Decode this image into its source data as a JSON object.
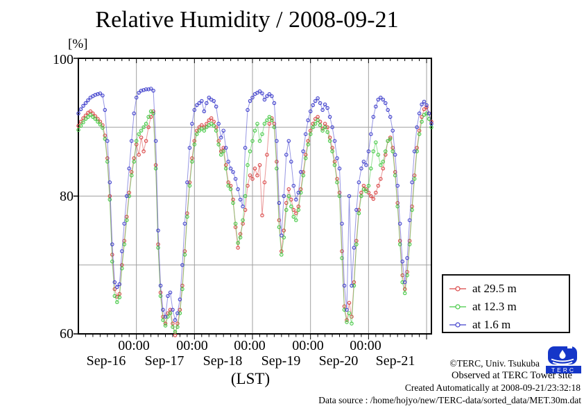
{
  "chart_data": {
    "type": "line",
    "title": "Relative Humidity / 2008-09-21",
    "y_unit_label": "[%]",
    "x_unit_label": "(LST)",
    "ylim": [
      60,
      100
    ],
    "ytick_labels": [
      "100",
      "80",
      "60"
    ],
    "ytick_values": [
      100,
      80,
      60
    ],
    "gridlines_y": [
      90,
      80,
      70
    ],
    "x_range_hours": [
      0,
      146
    ],
    "sample_interval_hours": 1,
    "minor_tick_interval_hours": 3,
    "major_tick_interval_hours": 24,
    "major_tick_label": "00:00",
    "day_labels": [
      "Sep-16",
      "Sep-17",
      "Sep-18",
      "Sep-19",
      "Sep-20",
      "Sep-21"
    ],
    "grid_color": "#a0a0a0",
    "axis_color": "#000000",
    "legend_position": "outside-right-bottom",
    "series": [
      {
        "name": "at 29.5 m",
        "color": "#d94444",
        "marker": "open-circle",
        "values": [
          90.2,
          90.8,
          91.3,
          91.7,
          92.1,
          92.3,
          92.0,
          91.6,
          91.2,
          90.8,
          90.3,
          88.8,
          85.5,
          80.0,
          71.5,
          66.5,
          65.4,
          65.8,
          70.0,
          73.5,
          77.0,
          80.5,
          83.5,
          85.5,
          87.5,
          86.0,
          88.5,
          86.5,
          88.0,
          90.0,
          91.5,
          92.3,
          84.5,
          73.0,
          66.0,
          62.5,
          61.5,
          63.0,
          63.5,
          61.5,
          59.8,
          61.5,
          63.5,
          67.0,
          72.0,
          77.5,
          82.0,
          85.5,
          88.0,
          89.5,
          90.0,
          90.3,
          90.0,
          90.5,
          91.0,
          91.3,
          90.8,
          90.0,
          88.0,
          86.5,
          87.0,
          84.5,
          82.0,
          81.5,
          79.5,
          75.5,
          72.5,
          74.5,
          76.0,
          78.0,
          81.5,
          83.0,
          82.5,
          84.0,
          83.0,
          84.5,
          77.2,
          82.0,
          86.0,
          90.5,
          91.3,
          90.5,
          85.0,
          76.5,
          72.0,
          75.0,
          79.0,
          81.0,
          79.5,
          78.0,
          77.5,
          78.5,
          81.0,
          83.5,
          86.0,
          88.0,
          89.5,
          90.5,
          91.2,
          91.5,
          90.8,
          89.8,
          90.5,
          90.0,
          88.5,
          87.0,
          85.0,
          82.5,
          80.5,
          72.0,
          64.0,
          62.0,
          64.5,
          62.5,
          67.5,
          73.5,
          78.0,
          80.5,
          81.5,
          81.0,
          80.5,
          80.0,
          79.6,
          80.5,
          81.5,
          82.5,
          84.0,
          86.0,
          88.0,
          88.5,
          87.0,
          83.5,
          79.0,
          73.5,
          68.5,
          66.5,
          69.0,
          73.5,
          78.5,
          83.0,
          87.0,
          89.5,
          91.5,
          92.6,
          92.9,
          92.0,
          90.8
        ]
      },
      {
        "name": "at 12.3 m",
        "color": "#44c944",
        "marker": "open-circle",
        "values": [
          89.6,
          90.2,
          90.7,
          91.2,
          91.5,
          91.8,
          91.5,
          91.2,
          90.8,
          90.4,
          89.9,
          88.3,
          85.0,
          79.5,
          70.5,
          65.5,
          64.6,
          65.3,
          69.5,
          73.0,
          76.5,
          80.0,
          83.0,
          85.0,
          88.0,
          89.0,
          89.5,
          90.0,
          90.5,
          91.5,
          92.3,
          92.0,
          84.0,
          72.5,
          65.5,
          62.0,
          61.2,
          62.5,
          63.0,
          61.0,
          60.3,
          61.0,
          63.0,
          66.5,
          71.5,
          77.0,
          81.5,
          85.0,
          87.5,
          89.0,
          89.5,
          89.8,
          89.5,
          90.0,
          90.3,
          90.5,
          90.2,
          89.5,
          87.5,
          86.0,
          86.5,
          84.0,
          81.5,
          81.0,
          79.0,
          76.0,
          73.2,
          74.0,
          76.5,
          80.0,
          84.5,
          86.5,
          88.0,
          89.5,
          90.5,
          88.0,
          89.0,
          90.5,
          91.0,
          91.5,
          91.0,
          90.0,
          84.0,
          75.5,
          71.5,
          74.0,
          78.0,
          80.0,
          78.5,
          77.0,
          76.5,
          78.0,
          80.5,
          83.0,
          85.5,
          87.5,
          89.0,
          90.0,
          90.5,
          91.0,
          90.3,
          89.5,
          90.0,
          89.3,
          88.0,
          86.5,
          84.5,
          82.0,
          80.0,
          71.0,
          63.5,
          61.7,
          63.0,
          61.5,
          67.0,
          73.0,
          77.5,
          80.0,
          81.0,
          80.7,
          81.5,
          84.0,
          86.5,
          87.8,
          86.0,
          84.5,
          85.0,
          86.5,
          88.0,
          88.3,
          86.5,
          83.0,
          78.5,
          73.0,
          67.5,
          65.9,
          68.5,
          73.0,
          78.0,
          82.5,
          86.5,
          89.0,
          90.8,
          91.8,
          92.0,
          91.2,
          90.0
        ]
      },
      {
        "name": "at 1.6 m",
        "color": "#4040cc",
        "marker": "open-circle",
        "values": [
          92.0,
          92.6,
          93.1,
          93.5,
          93.9,
          94.3,
          94.5,
          94.7,
          94.8,
          94.9,
          94.6,
          92.5,
          88.0,
          82.0,
          73.0,
          67.5,
          66.8,
          67.2,
          72.0,
          76.0,
          80.0,
          84.0,
          88.0,
          92.0,
          94.3,
          95.0,
          95.3,
          95.4,
          95.5,
          95.5,
          95.6,
          95.3,
          88.0,
          75.0,
          67.0,
          63.5,
          62.5,
          65.5,
          66.0,
          63.5,
          62.0,
          63.0,
          65.0,
          70.0,
          76.0,
          82.0,
          87.0,
          90.5,
          92.5,
          93.2,
          93.5,
          93.8,
          92.3,
          93.5,
          94.3,
          94.0,
          93.8,
          93.0,
          90.5,
          88.5,
          89.5,
          87.0,
          85.0,
          84.0,
          83.5,
          82.5,
          81.0,
          79.5,
          78.5,
          87.0,
          92.5,
          93.8,
          94.3,
          94.8,
          95.0,
          95.2,
          94.9,
          94.0,
          94.5,
          94.8,
          94.5,
          93.5,
          88.0,
          79.0,
          74.3,
          80.0,
          86.0,
          88.0,
          85.0,
          81.5,
          79.5,
          80.5,
          83.5,
          86.5,
          89.0,
          91.0,
          92.3,
          93.2,
          93.8,
          94.2,
          93.5,
          92.5,
          93.3,
          92.8,
          91.5,
          90.0,
          88.0,
          85.5,
          84.0,
          76.0,
          67.0,
          63.5,
          80.0,
          67.0,
          72.5,
          78.0,
          82.0,
          84.0,
          85.0,
          84.5,
          86.5,
          89.0,
          91.5,
          93.0,
          94.0,
          94.3,
          94.0,
          93.5,
          92.5,
          91.5,
          89.5,
          86.0,
          81.5,
          76.0,
          70.5,
          67.5,
          71.0,
          76.5,
          82.0,
          86.5,
          90.0,
          92.0,
          93.3,
          93.7,
          93.2,
          92.0,
          90.5
        ]
      }
    ]
  },
  "footer": {
    "copyright": "©TERC, Univ. Tsukuba",
    "observed": "Observed at TERC Tower site",
    "created": "Created Automatically at 2008-09-21/23:32:18",
    "data_source": "Data source : /home/hojyo/new/TERC-data/sorted_data/MET.30m.dat",
    "logo_text": "TERC",
    "logo_color": "#1536c8"
  }
}
